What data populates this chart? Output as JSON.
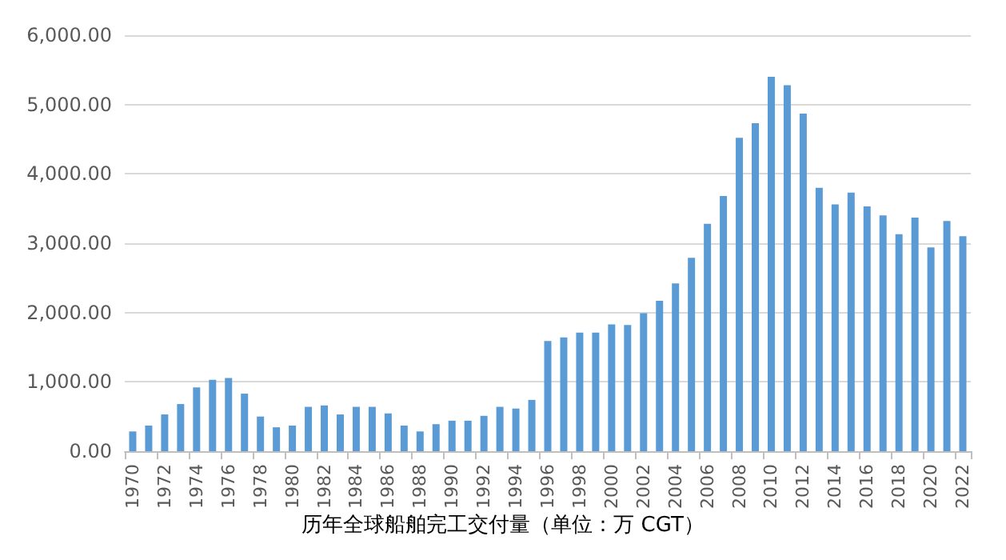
{
  "chart_data": {
    "type": "bar",
    "title": "历年全球船舶完工交付量（单位：万 CGT）",
    "categories": [
      "1970",
      null,
      "1972",
      null,
      "1974",
      null,
      "1976",
      null,
      "1978",
      null,
      "1980",
      null,
      "1982",
      null,
      "1984",
      null,
      "1986",
      null,
      "1988",
      null,
      "1990",
      null,
      "1992",
      null,
      "1994",
      null,
      "1996",
      null,
      "1998",
      null,
      "2000",
      null,
      "2002",
      null,
      "2004",
      null,
      "2006",
      null,
      "2008",
      null,
      "2010",
      null,
      "2012",
      null,
      "2014",
      null,
      "2016",
      null,
      "2018",
      null,
      "2020",
      null,
      "2022"
    ],
    "values": [
      285,
      370,
      530,
      680,
      920,
      1030,
      1055,
      830,
      500,
      345,
      370,
      640,
      660,
      530,
      640,
      640,
      545,
      370,
      285,
      390,
      440,
      440,
      510,
      640,
      615,
      740,
      1590,
      1640,
      1710,
      1710,
      1830,
      1820,
      1990,
      2170,
      2420,
      2790,
      3280,
      3680,
      4520,
      4730,
      5400,
      5280,
      4870,
      3800,
      3560,
      3730,
      3530,
      3400,
      3130,
      3370,
      2940,
      3320,
      3100
    ],
    "color": "#5b9bd5",
    "ylim": [
      0,
      6000
    ],
    "yticks": [
      {
        "value": 0,
        "label": "0.00"
      },
      {
        "value": 1000,
        "label": "1,000.00"
      },
      {
        "value": 2000,
        "label": "2,000.00"
      },
      {
        "value": 3000,
        "label": "3,000.00"
      },
      {
        "value": 4000,
        "label": "4,000.00"
      },
      {
        "value": 5000,
        "label": "5,000.00"
      },
      {
        "value": 6000,
        "label": "6,000.00"
      }
    ],
    "grid": true
  }
}
